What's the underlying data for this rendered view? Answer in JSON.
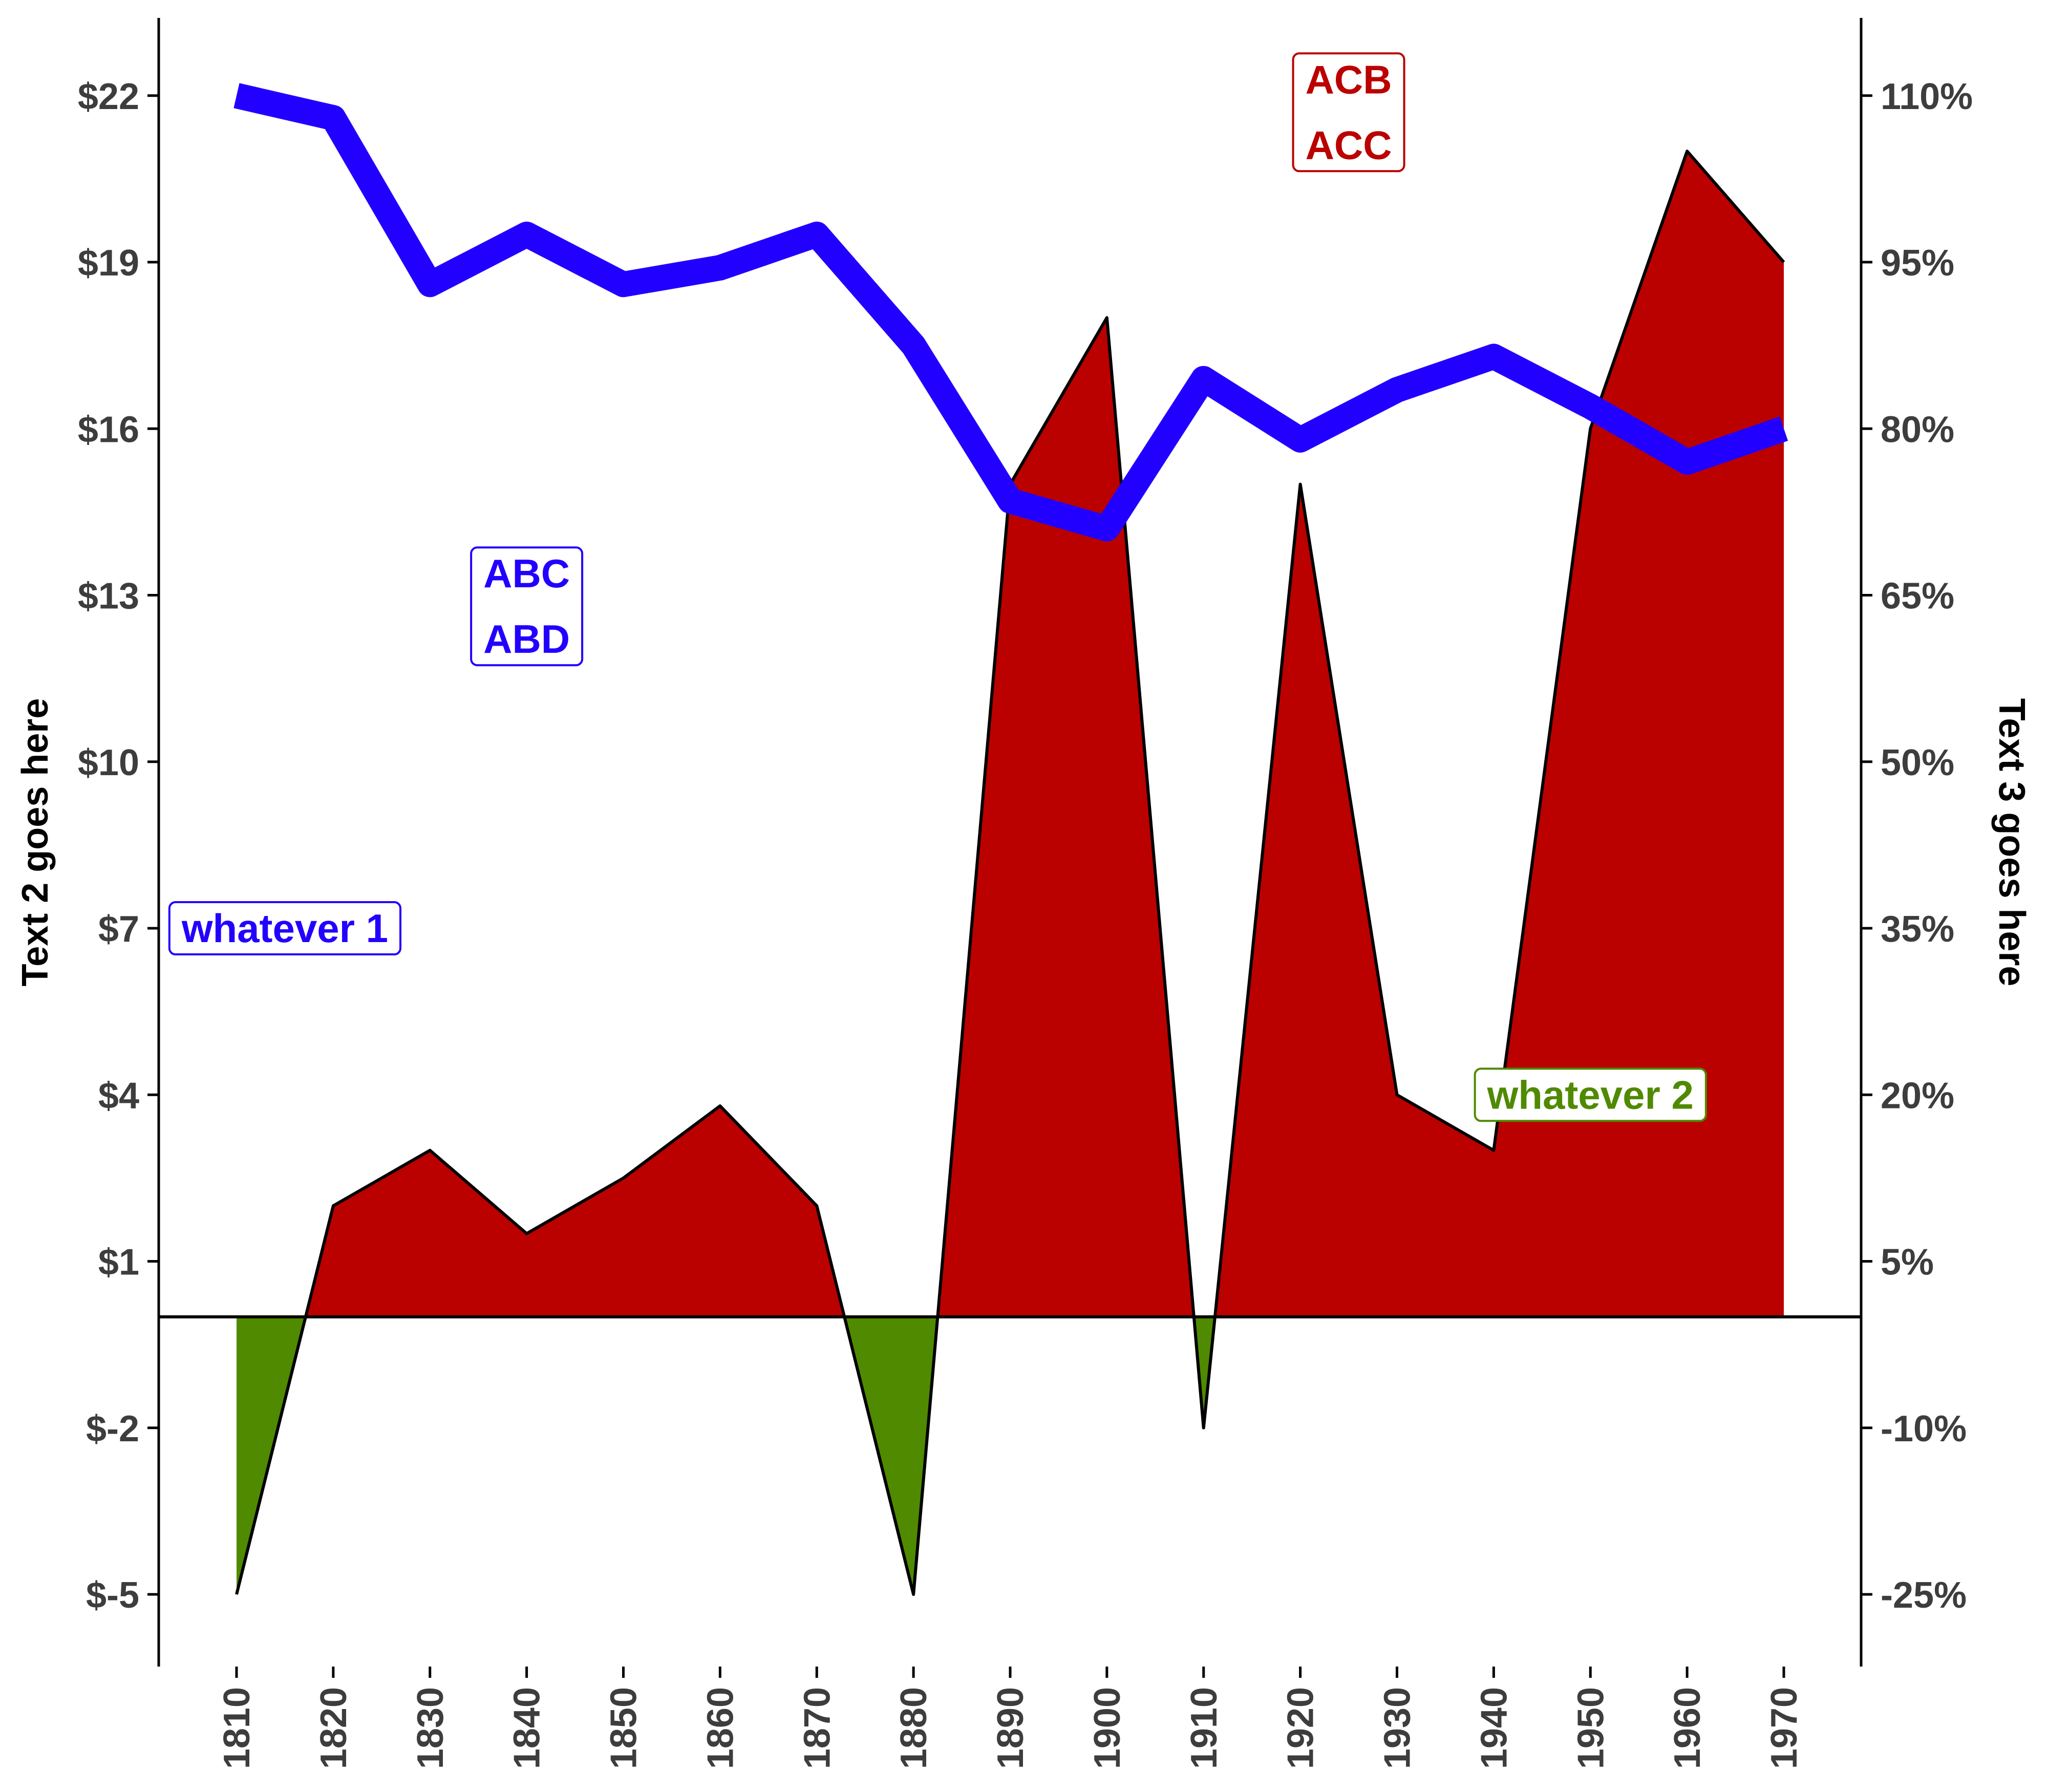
{
  "chart_data": {
    "type": "area",
    "x": [
      1810,
      1820,
      1830,
      1840,
      1850,
      1860,
      1870,
      1880,
      1890,
      1900,
      1910,
      1920,
      1930,
      1940,
      1950,
      1960,
      1970
    ],
    "x_tick_labels": [
      "1810",
      "1820",
      "1830",
      "1840",
      "1850",
      "1860",
      "1870",
      "1880",
      "1890",
      "1900",
      "1910",
      "1920",
      "1930",
      "1940",
      "1950",
      "1960",
      "1970"
    ],
    "ylabel_left": "Text 2 goes here",
    "ylabel_right": "Text 3 goes here",
    "y_left_ticks": [
      -5,
      -2,
      1,
      4,
      7,
      10,
      13,
      16,
      19,
      22
    ],
    "y_left_tick_labels": [
      "$-5",
      "$-2",
      "$1",
      "$4",
      "$7",
      "$10",
      "$13",
      "$16",
      "$19",
      "$22"
    ],
    "y_right_ticks": [
      -25,
      -10,
      5,
      20,
      35,
      50,
      65,
      80,
      95,
      110
    ],
    "y_right_tick_labels": [
      "-25%",
      "-10%",
      "5%",
      "20%",
      "35%",
      "50%",
      "65%",
      "80%",
      "95%",
      "110%"
    ],
    "ylim_left": [
      -6.3,
      23.4
    ],
    "series": [
      {
        "axis": "right",
        "style": "area",
        "values": [
          -25,
          10,
          15,
          7.5,
          12.5,
          19,
          10,
          -25,
          75,
          90,
          -10,
          75,
          20,
          15,
          80,
          105,
          95
        ],
        "positive_color": "#bb0000",
        "negative_color": "#4f8a00"
      },
      {
        "axis": "left",
        "style": "line",
        "values": [
          22,
          21.6,
          18.6,
          19.5,
          18.6,
          18.9,
          19.5,
          17.5,
          14.7,
          14.2,
          16.9,
          15.8,
          16.7,
          17.3,
          16.4,
          15.4,
          16.0
        ],
        "color": "#2200ff"
      }
    ],
    "annotations": [
      {
        "lines": [
          "ABC",
          "ABD"
        ],
        "color": "#2200ff",
        "x": 1840,
        "y": 12.8
      },
      {
        "lines": [
          "ACB",
          "ACC"
        ],
        "color": "#bb0000",
        "x": 1925,
        "y": 21.7
      },
      {
        "lines": [
          "whatever 1"
        ],
        "color": "#2200ff",
        "x": 1815,
        "y": 7
      },
      {
        "lines": [
          "whatever 2"
        ],
        "color": "#4f8a00",
        "x": 1950,
        "y": 4
      }
    ],
    "grid": false,
    "legend": "none"
  }
}
